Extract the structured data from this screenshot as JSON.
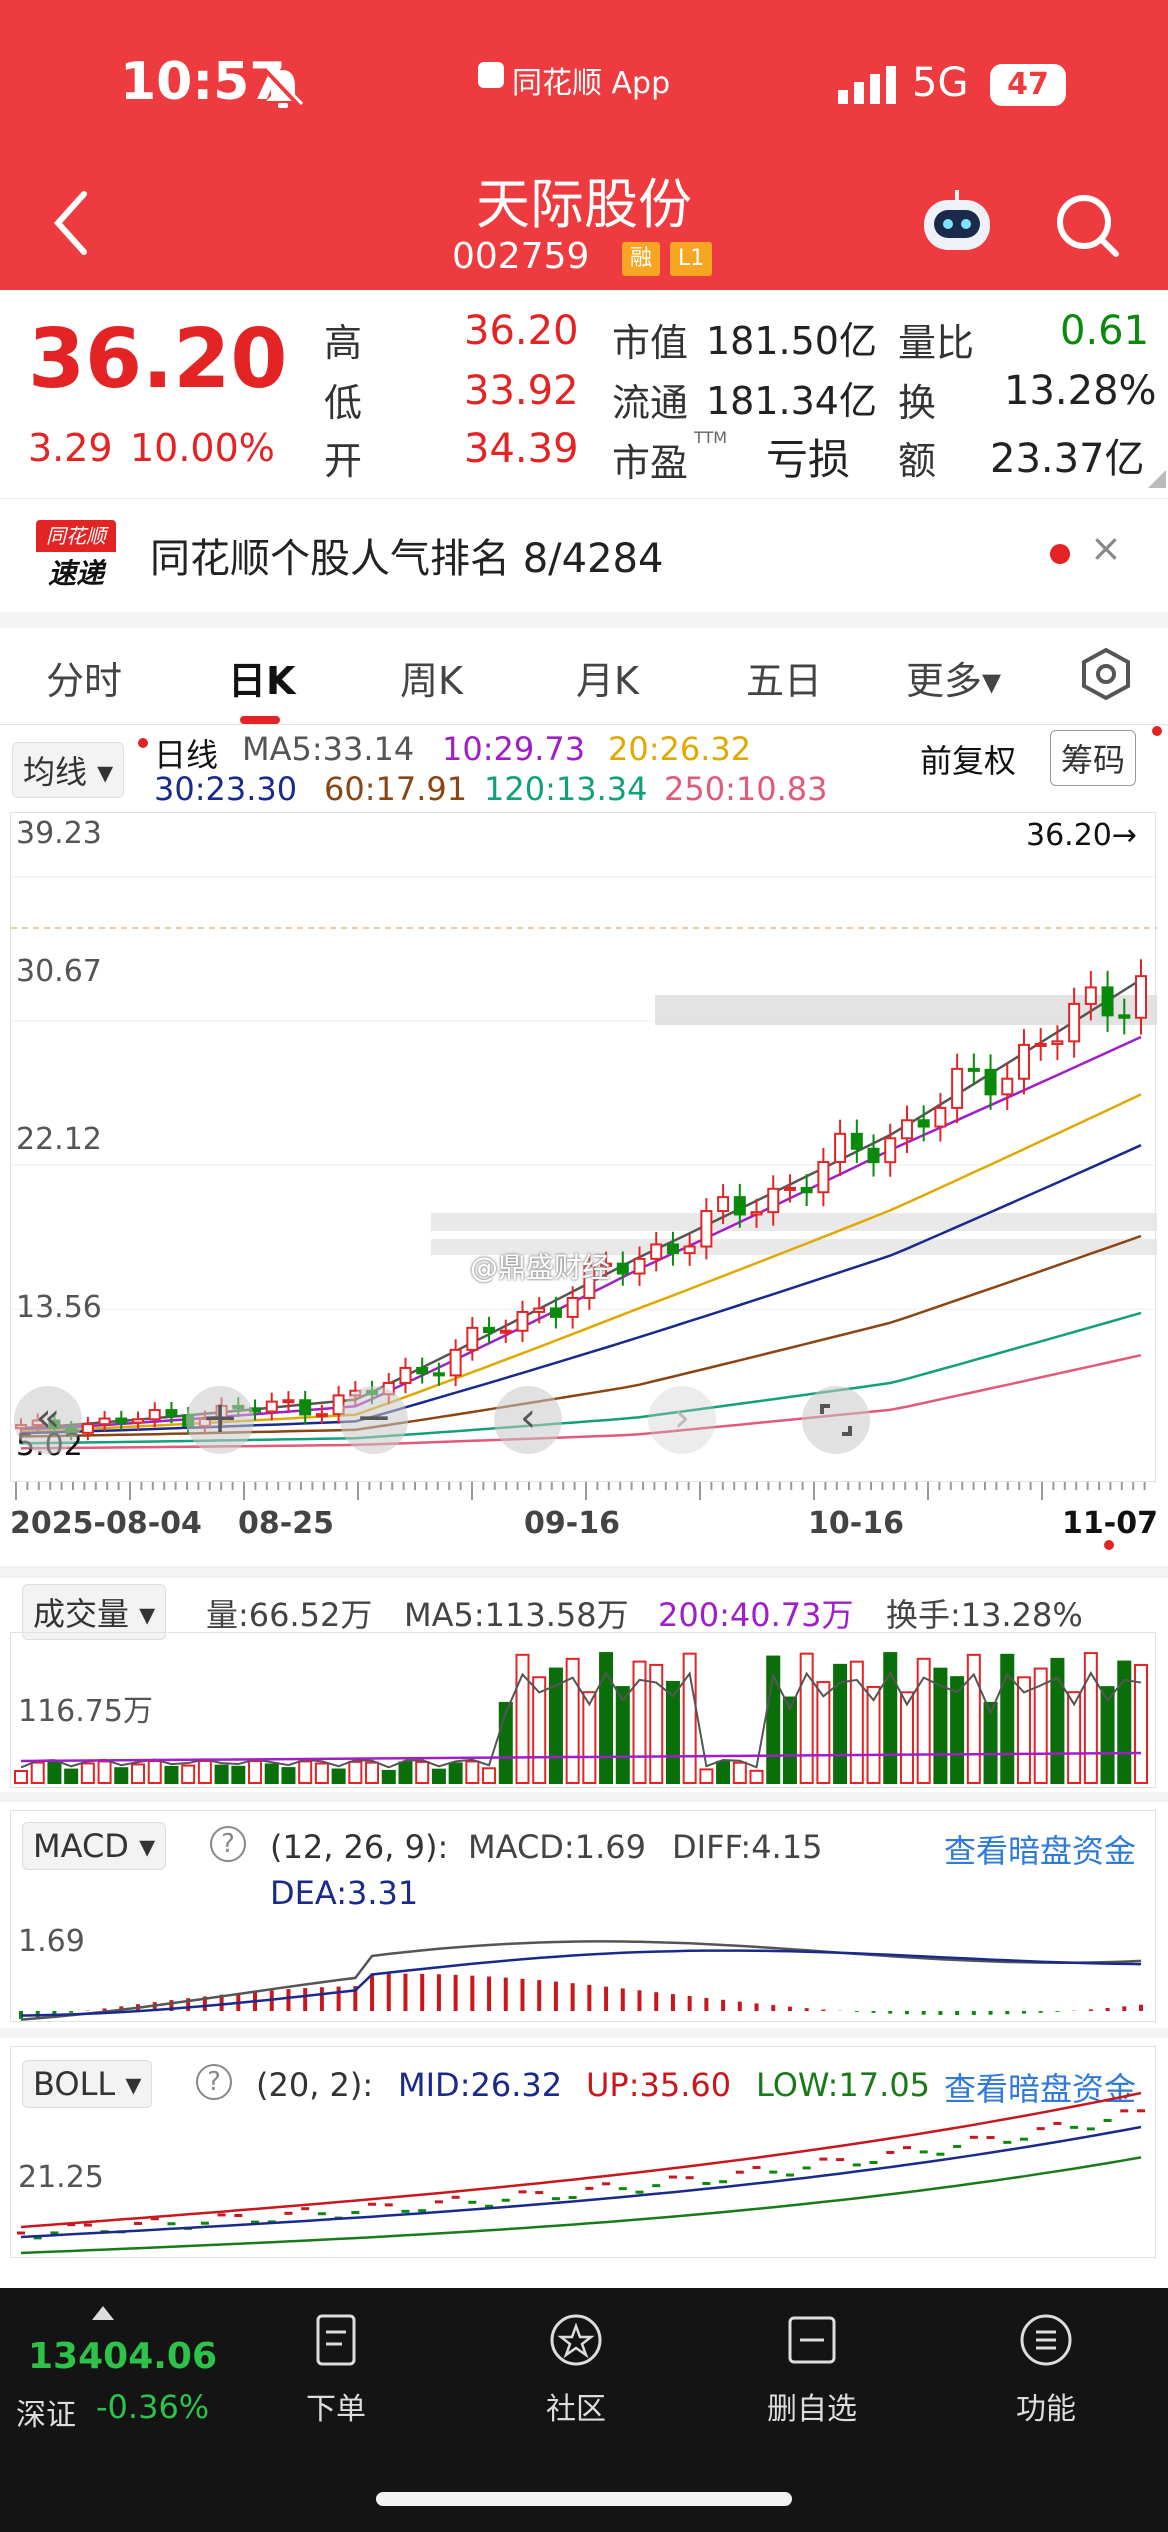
{
  "status": {
    "time": "10:57",
    "app": "同花顺 App",
    "network": "5G",
    "battery": "47"
  },
  "header": {
    "title": "天际股份",
    "code": "002759",
    "badge_rong": "融",
    "badge_level": "L1"
  },
  "quote": {
    "price": "36.20",
    "change": "3.29",
    "change_pct": "10.00%",
    "high_label": "高",
    "high": "36.20",
    "low_label": "低",
    "low": "33.92",
    "open_label": "开",
    "open": "34.39",
    "mcap_label": "市值",
    "mcap": "181.50亿",
    "float_label": "流通",
    "float": "181.34亿",
    "pe_label": "市盈",
    "pe_sup": "TTM",
    "pe": "亏损",
    "vr_label": "量比",
    "vr": "0.61",
    "turn_label": "换",
    "turn": "13.28%",
    "amt_label": "额",
    "amt": "23.37亿"
  },
  "popularity": {
    "logo_top": "同花顺",
    "logo_bottom": "速递",
    "text": "同花顺个股人气排名 8/4284",
    "close": "×"
  },
  "tabs": [
    "分时",
    "日K",
    "周K",
    "月K",
    "五日",
    "更多▾"
  ],
  "legend": {
    "selector": "均线 ▾",
    "period": "日线",
    "ma5": "MA5:33.14",
    "ma10": "10:29.73",
    "ma20": "20:26.32",
    "ma30": "30:23.30",
    "ma60": "60:17.91",
    "ma120": "120:13.34",
    "ma250": "250:10.83",
    "adjust": "前复权",
    "chip": "筹码"
  },
  "kchart": {
    "y_ticks": [
      "39.23",
      "30.67",
      "22.12",
      "13.56"
    ],
    "y_min_label": "5.02",
    "last_price_label": "36.20→",
    "x_ticks": [
      "2025-08-04",
      "08-25",
      "09-16",
      "10-16",
      "11-07"
    ],
    "watermark": "@鼎盛财经"
  },
  "chart_data": {
    "type": "line",
    "title": "",
    "x": [
      "2025-08-04",
      "08-25",
      "09-16",
      "10-16",
      "11-07"
    ],
    "ylim": [
      5.02,
      39.23
    ],
    "series": [
      {
        "name": "MA5",
        "values": [
          6.5,
          8.2,
          16.5,
          24.0,
          33.14
        ]
      },
      {
        "name": "10",
        "values": [
          6.4,
          7.8,
          15.8,
          23.1,
          29.73
        ]
      },
      {
        "name": "20",
        "values": [
          6.3,
          7.3,
          13.5,
          19.5,
          26.32
        ]
      },
      {
        "name": "30",
        "values": [
          6.2,
          6.9,
          11.8,
          16.8,
          23.3
        ]
      },
      {
        "name": "60",
        "values": [
          6.0,
          6.4,
          9.0,
          12.8,
          17.91
        ]
      },
      {
        "name": "120",
        "values": [
          5.6,
          5.9,
          7.1,
          9.2,
          13.34
        ]
      },
      {
        "name": "250",
        "values": [
          5.3,
          5.5,
          6.1,
          7.6,
          10.83
        ]
      }
    ]
  },
  "volume": {
    "selector": "成交量 ▾",
    "vol": "量:66.52万",
    "ma5": "MA5:113.58万",
    "ma200": "200:40.73万",
    "turnover": "换手:13.28%",
    "y_tick": "116.75万"
  },
  "macd": {
    "selector": "MACD ▾",
    "q": "?",
    "params": "(12, 26, 9):",
    "macd": "MACD:1.69",
    "diff": "DIFF:4.15",
    "dea": "DEA:3.31",
    "link": "查看暗盘资金",
    "y_tick": "1.69"
  },
  "boll": {
    "selector": "BOLL ▾",
    "q": "?",
    "params": "(20, 2):",
    "mid": "MID:26.32",
    "up": "UP:35.60",
    "low": "LOW:17.05",
    "link": "查看暗盘资金",
    "y_tick": "21.25"
  },
  "bottom": {
    "index_value": "13404.06",
    "index_name": "深证",
    "index_change": "-0.36%",
    "nav": [
      "下单",
      "社区",
      "删自选",
      "功能"
    ]
  },
  "colors": {
    "brand_red": "#ee3b3f",
    "up": "#e42424",
    "down": "#0a8a0a",
    "blue_link": "#2f7ad6"
  }
}
